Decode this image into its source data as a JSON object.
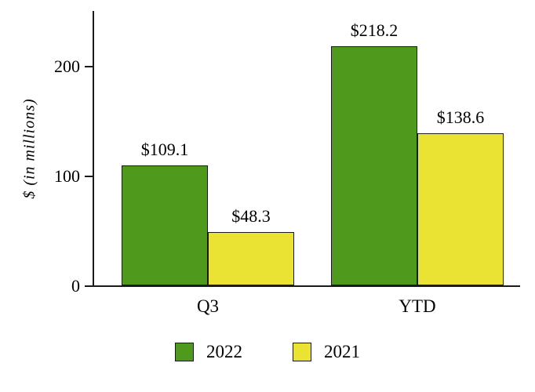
{
  "chart_data": {
    "type": "bar",
    "categories": [
      "Q3",
      "YTD"
    ],
    "series": [
      {
        "name": "2022",
        "color": "#4f9a1d",
        "values": [
          109.1,
          218.2
        ],
        "labels": [
          "$109.1",
          "$218.2"
        ]
      },
      {
        "name": "2021",
        "color": "#eae334",
        "values": [
          48.3,
          138.6
        ],
        "labels": [
          "$48.3",
          "$138.6"
        ]
      }
    ],
    "title": "",
    "xlabel": "",
    "ylabel": "$ (in millions)",
    "yticks": [
      "0",
      "100",
      "200"
    ],
    "ylim": [
      0,
      250
    ],
    "grid": false,
    "legend_position": "bottom"
  },
  "legend": {
    "items": [
      {
        "label": "2022"
      },
      {
        "label": "2021"
      }
    ]
  }
}
